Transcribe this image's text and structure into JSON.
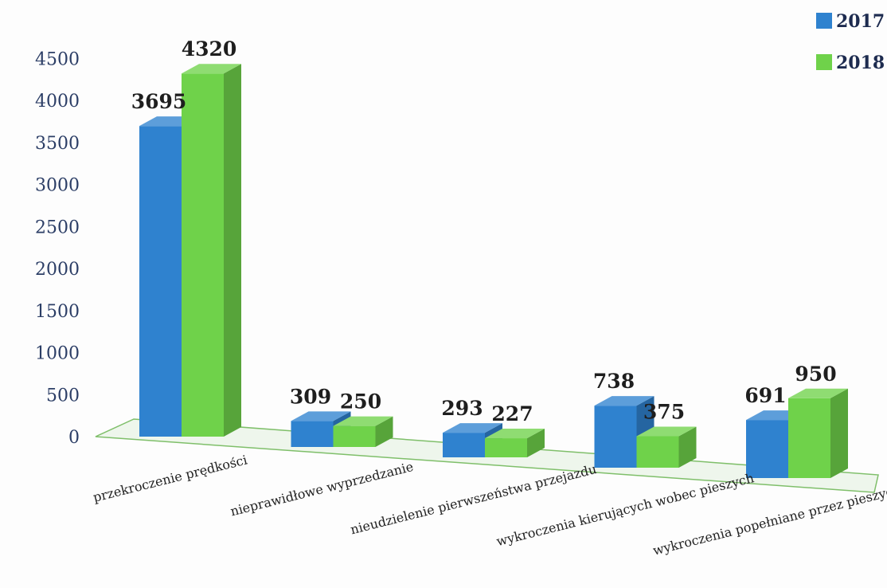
{
  "chart_data": {
    "type": "bar",
    "categories": [
      "przekroczenie prędkości",
      "nieprawidłowe wyprzedzanie",
      "nieudzielenie pierwszeństwa przejazdu",
      "wykroczenia kierujących wobec pieszych",
      "wykroczenia popełniane przez pieszych"
    ],
    "series": [
      {
        "name": "2017",
        "values": [
          3695,
          309,
          293,
          738,
          691
        ],
        "color": "#2f82cf"
      },
      {
        "name": "2018",
        "values": [
          4320,
          250,
          227,
          375,
          950
        ],
        "color": "#6fd24a"
      }
    ],
    "yticks": [
      "0",
      "500",
      "1000",
      "1500",
      "2000",
      "2500",
      "3000",
      "3500",
      "4000",
      "4500"
    ],
    "ylim": [
      0,
      4500
    ],
    "style": "3d-clustered-column",
    "legend_position": "top-right",
    "grid": false,
    "title": "",
    "xlabel": "",
    "ylabel": ""
  }
}
